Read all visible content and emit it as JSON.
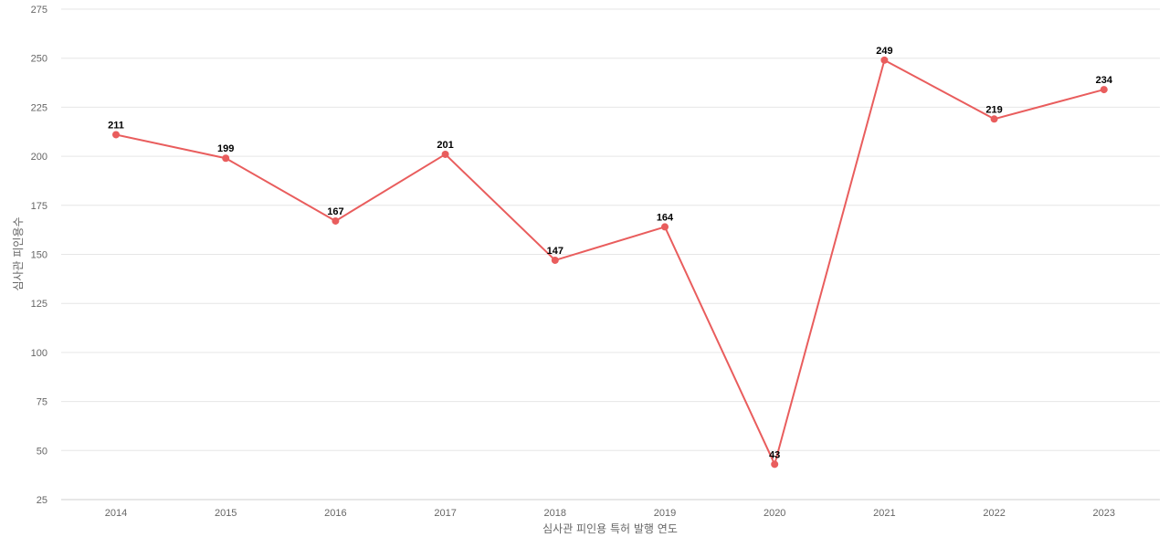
{
  "chart_data": {
    "type": "line",
    "x": [
      "2014",
      "2015",
      "2016",
      "2017",
      "2018",
      "2019",
      "2020",
      "2021",
      "2022",
      "2023"
    ],
    "series": [
      {
        "values": [
          211,
          199,
          167,
          201,
          147,
          164,
          43,
          249,
          219,
          234
        ],
        "color": "#e95d5d"
      }
    ],
    "title": "",
    "xlabel": "심사관 피인용 특허 발행 연도",
    "ylabel": "심사관 피인용수",
    "ylim": [
      25,
      275
    ],
    "yticks": [
      25,
      50,
      75,
      100,
      125,
      150,
      175,
      200,
      225,
      250,
      275
    ],
    "grid": true,
    "data_labels": true,
    "legend": "none"
  }
}
